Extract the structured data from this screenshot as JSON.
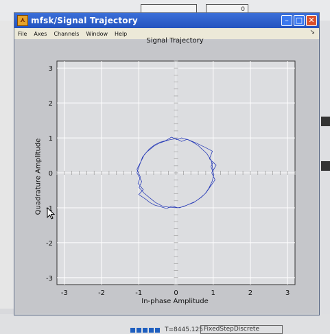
{
  "background": {
    "box_value": "0",
    "status": {
      "t_label": "T=8445.125",
      "solver": "FixedStepDiscrete"
    }
  },
  "window": {
    "title": "mfsk/Signal Trajectory",
    "menu": [
      "File",
      "Axes",
      "Channels",
      "Window",
      "Help"
    ],
    "pin": "↘"
  },
  "colors": {
    "titlebar": "#2f60cc",
    "trace": "#2c3fb8",
    "axes_bg": "#dcdde0",
    "grid": "#ffffff"
  },
  "chart_data": {
    "type": "scatter",
    "title": "Signal Trajectory",
    "xlabel": "In-phase Amplitude",
    "ylabel": "Quadrature Amplitude",
    "xlim": [
      -3.2,
      3.2
    ],
    "ylim": [
      -3.2,
      3.2
    ],
    "xticks": [
      "-3",
      "-2",
      "-1",
      "0",
      "1",
      "2",
      "3"
    ],
    "yticks": [
      "3",
      "2",
      "1",
      "0",
      "-1",
      "-2",
      "-3"
    ],
    "grid": true,
    "series": [
      {
        "style": "line",
        "x": [
          1.0,
          0.95,
          0.83,
          0.6,
          0.45,
          0.32,
          0.15,
          0.02,
          -0.12,
          -0.28,
          -0.42,
          -0.58,
          -0.72,
          -0.85,
          -0.93,
          -1.05,
          -0.96,
          -1.02,
          -0.88,
          -1.0,
          -0.82,
          -0.7,
          -0.58,
          -0.42,
          -0.25,
          -0.1,
          0.05,
          0.2,
          0.35,
          0.52,
          0.68,
          0.8,
          0.92,
          1.05,
          0.96,
          1.08,
          0.9,
          0.98,
          0.8,
          0.55,
          0.3,
          0.15,
          0.0,
          -0.2,
          -0.45,
          -0.6,
          -0.78,
          -0.9,
          -0.98,
          -1.05,
          -0.92,
          -0.99,
          -0.86,
          -0.7,
          -0.55,
          -0.35,
          -0.15,
          0.1,
          0.28,
          0.48,
          0.65,
          0.78,
          0.88,
          0.97,
          1.02,
          0.94,
          1.0
        ],
        "y": [
          0.05,
          0.35,
          0.55,
          0.78,
          0.88,
          0.95,
          1.0,
          0.95,
          1.02,
          0.92,
          0.88,
          0.8,
          0.68,
          0.52,
          0.35,
          0.1,
          -0.12,
          -0.3,
          -0.48,
          -0.62,
          -0.75,
          -0.85,
          -0.92,
          -0.97,
          -1.02,
          -0.95,
          -1.0,
          -0.97,
          -0.9,
          -0.82,
          -0.7,
          -0.58,
          -0.4,
          -0.2,
          0.0,
          0.22,
          0.4,
          0.62,
          0.72,
          0.85,
          0.96,
          0.9,
          0.98,
          0.94,
          0.85,
          0.76,
          0.6,
          0.45,
          0.22,
          0.0,
          -0.25,
          -0.42,
          -0.58,
          -0.72,
          -0.85,
          -0.96,
          -0.99,
          -1.0,
          -0.93,
          -0.85,
          -0.72,
          -0.6,
          -0.45,
          -0.25,
          -0.05,
          0.18,
          0.3
        ]
      }
    ]
  }
}
